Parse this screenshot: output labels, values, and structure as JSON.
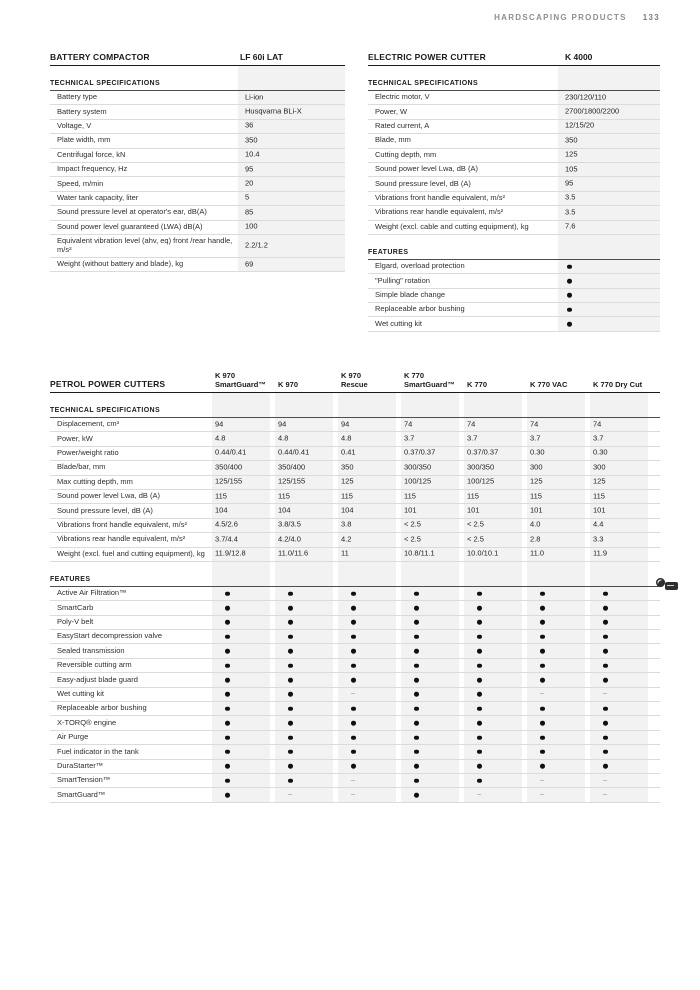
{
  "page_header": {
    "title": "HARDSCAPING PRODUCTS",
    "page_number": "133"
  },
  "colors": {
    "band": "#f2f2f2",
    "rule_thick": "#1a1a1a",
    "rule_section": "#4d4d4d",
    "rule_light": "#dbdbdb",
    "muted_header": "#8f8f8f",
    "dash": "#8a8a8a"
  },
  "battery": {
    "title": "BATTERY COMPACTOR",
    "model": "LF 60i LAT",
    "spec_label": "TECHNICAL SPECIFICATIONS",
    "rows": [
      {
        "label": "Battery type",
        "value": "Li-ion"
      },
      {
        "label": "Battery system",
        "value": "Husqvarna BLi-X"
      },
      {
        "label": "Voltage, V",
        "value": "36"
      },
      {
        "label": "Plate width, mm",
        "value": "350"
      },
      {
        "label": "Centrifugal force, kN",
        "value": "10.4"
      },
      {
        "label": "Impact frequency, Hz",
        "value": "95"
      },
      {
        "label": "Speed, m/min",
        "value": "20"
      },
      {
        "label": "Water tank capacity, liter",
        "value": "5"
      },
      {
        "label": "Sound pressure level at operator's ear, dB(A)",
        "value": "85"
      },
      {
        "label": "Sound power level guaranteed (LWA) dB(A)",
        "value": "100"
      },
      {
        "label": "Equivalent vibration level (ahv, eq) front /rear handle, m/s²",
        "value": "2.2/1.2"
      },
      {
        "label": "Weight (without battery and blade), kg",
        "value": "69"
      }
    ]
  },
  "electric": {
    "title": "ELECTRIC POWER CUTTER",
    "model": "K 4000",
    "spec_label": "TECHNICAL SPECIFICATIONS",
    "rows": [
      {
        "label": "Electric motor, V",
        "value": "230/120/110"
      },
      {
        "label": "Power, W",
        "value": "2700/1800/2200"
      },
      {
        "label": "Rated current, A",
        "value": "12/15/20"
      },
      {
        "label": "Blade, mm",
        "value": "350"
      },
      {
        "label": "Cutting depth, mm",
        "value": "125"
      },
      {
        "label": "Sound power level Lwa, dB (A)",
        "value": "105"
      },
      {
        "label": "Sound pressure level, dB (A)",
        "value": "95"
      },
      {
        "label": "Vibrations front handle equivalent, m/s²",
        "value": "3.5"
      },
      {
        "label": "Vibrations rear handle equivalent, m/s²",
        "value": "3.5"
      },
      {
        "label": "Weight (excl. cable and cutting equipment), kg",
        "value": "7.6"
      }
    ],
    "features_label": "FEATURES",
    "features": [
      {
        "label": "Elgard, overload protection",
        "value": "●"
      },
      {
        "label": "\"Pulling\" rotation",
        "value": "●"
      },
      {
        "label": "Simple blade change",
        "value": "●"
      },
      {
        "label": "Replaceable arbor bushing",
        "value": "●"
      },
      {
        "label": "Wet cutting kit",
        "value": "●"
      }
    ]
  },
  "petrol": {
    "title": "PETROL POWER CUTTERS",
    "columns": [
      [
        "K 970",
        "SmartGuard™"
      ],
      [
        "K 970"
      ],
      [
        "K 970",
        "Rescue"
      ],
      [
        "K 770",
        "SmartGuard™"
      ],
      [
        "K 770"
      ],
      [
        "K 770 VAC"
      ],
      [
        "K 770 Dry Cut"
      ]
    ],
    "spec_label": "TECHNICAL SPECIFICATIONS",
    "spec_rows": [
      {
        "label": "Displacement, cm³",
        "values": [
          "94",
          "94",
          "94",
          "74",
          "74",
          "74",
          "74"
        ]
      },
      {
        "label": "Power, kW",
        "values": [
          "4.8",
          "4.8",
          "4.8",
          "3.7",
          "3.7",
          "3.7",
          "3.7"
        ]
      },
      {
        "label": "Power/weight ratio",
        "values": [
          "0.44/0.41",
          "0.44/0.41",
          "0.41",
          "0.37/0.37",
          "0.37/0.37",
          "0.30",
          "0.30"
        ]
      },
      {
        "label": "Blade/bar, mm",
        "values": [
          "350/400",
          "350/400",
          "350",
          "300/350",
          "300/350",
          "300",
          "300"
        ]
      },
      {
        "label": "Max cutting depth, mm",
        "values": [
          "125/155",
          "125/155",
          "125",
          "100/125",
          "100/125",
          "125",
          "125"
        ]
      },
      {
        "label": "Sound power level Lwa, dB (A)",
        "values": [
          "115",
          "115",
          "115",
          "115",
          "115",
          "115",
          "115"
        ]
      },
      {
        "label": "Sound pressure level, dB (A)",
        "values": [
          "104",
          "104",
          "104",
          "101",
          "101",
          "101",
          "101"
        ]
      },
      {
        "label": "Vibrations front handle equivalent, m/s²",
        "values": [
          "4.5/2.6",
          "3.8/3.5",
          "3.8",
          "< 2.5",
          "< 2.5",
          "4.0",
          "4.4"
        ]
      },
      {
        "label": "Vibrations rear handle equivalent, m/s²",
        "values": [
          "3.7/4.4",
          "4.2/4.0",
          "4.2",
          "< 2.5",
          "< 2.5",
          "2.8",
          "3.3"
        ]
      },
      {
        "label": "Weight (excl. fuel and cutting equipment), kg",
        "values": [
          "11.9/12.8",
          "11.0/11.6",
          "11",
          "10.8/11.1",
          "10.0/10.1",
          "11.0",
          "11.9"
        ]
      }
    ],
    "features_label": "FEATURES",
    "feature_rows": [
      {
        "label": "Active Air Filtration™",
        "values": [
          "●",
          "●",
          "●",
          "●",
          "●",
          "●",
          "●"
        ]
      },
      {
        "label": "SmartCarb",
        "values": [
          "●",
          "●",
          "●",
          "●",
          "●",
          "●",
          "●"
        ]
      },
      {
        "label": "Poly-V belt",
        "values": [
          "●",
          "●",
          "●",
          "●",
          "●",
          "●",
          "●"
        ]
      },
      {
        "label": "EasyStart decompression valve",
        "values": [
          "●",
          "●",
          "●",
          "●",
          "●",
          "●",
          "●"
        ]
      },
      {
        "label": "Sealed transmission",
        "values": [
          "●",
          "●",
          "●",
          "●",
          "●",
          "●",
          "●"
        ]
      },
      {
        "label": "Reversible cutting arm",
        "values": [
          "●",
          "●",
          "●",
          "●",
          "●",
          "●",
          "●"
        ]
      },
      {
        "label": "Easy-adjust blade guard",
        "values": [
          "●",
          "●",
          "●",
          "●",
          "●",
          "●",
          "●"
        ]
      },
      {
        "label": "Wet cutting kit",
        "values": [
          "●",
          "●",
          "–",
          "●",
          "●",
          "–",
          "–"
        ]
      },
      {
        "label": "Replaceable arbor bushing",
        "values": [
          "●",
          "●",
          "●",
          "●",
          "●",
          "●",
          "●"
        ]
      },
      {
        "label": "X-TORQ® engine",
        "values": [
          "●",
          "●",
          "●",
          "●",
          "●",
          "●",
          "●"
        ]
      },
      {
        "label": "Air Purge",
        "values": [
          "●",
          "●",
          "●",
          "●",
          "●",
          "●",
          "●"
        ]
      },
      {
        "label": "Fuel indicator in the tank",
        "values": [
          "●",
          "●",
          "●",
          "●",
          "●",
          "●",
          "●"
        ]
      },
      {
        "label": "DuraStarter™",
        "values": [
          "●",
          "●",
          "●",
          "●",
          "●",
          "●",
          "●"
        ]
      },
      {
        "label": "SmartTension™",
        "values": [
          "●",
          "●",
          "–",
          "●",
          "●",
          "–",
          "–"
        ]
      },
      {
        "label": "SmartGuard™",
        "values": [
          "●",
          "–",
          "–",
          "●",
          "–",
          "–",
          "–"
        ]
      }
    ]
  }
}
